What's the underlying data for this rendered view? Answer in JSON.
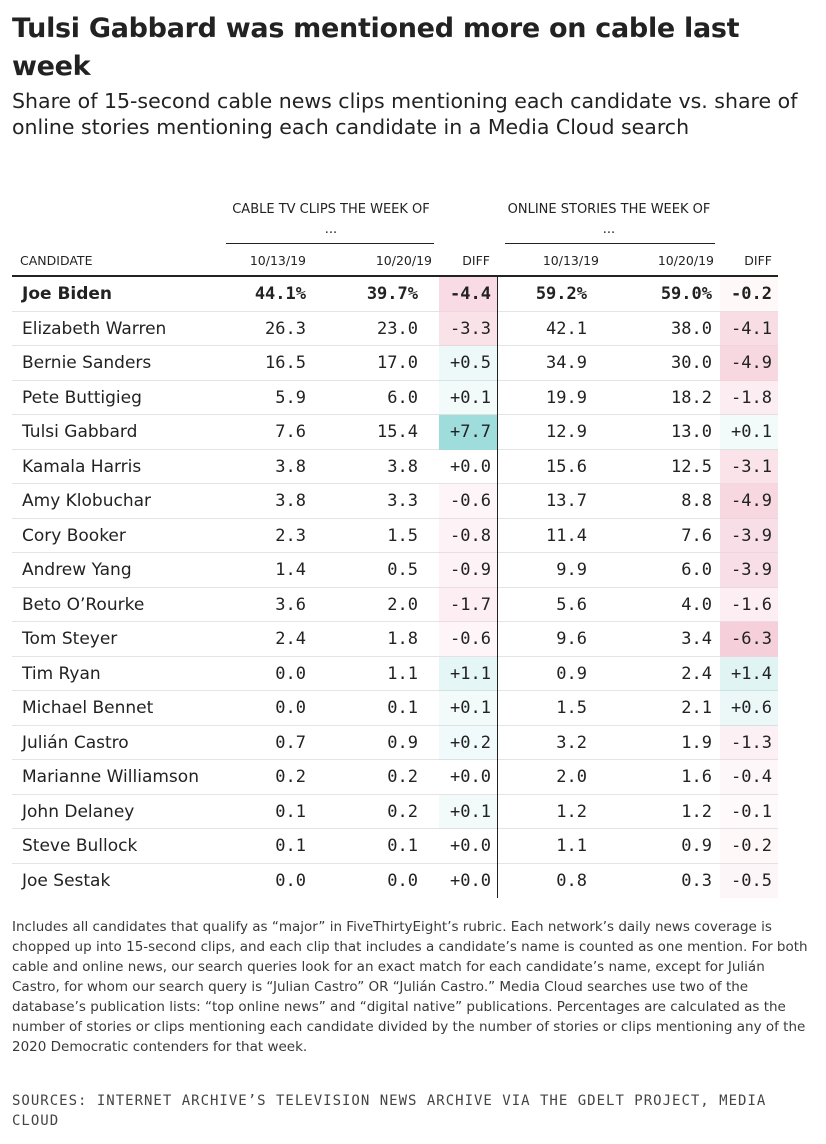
{
  "title": "Tulsi Gabbard was mentioned more on cable last week",
  "subtitle": "Share of 15-second cable news clips mentioning each candidate vs. share of online stories mentioning each candidate in a Media Cloud search",
  "colors": {
    "negative": "#f5cdd9",
    "positive": "#9fdcdc",
    "text": "#222222"
  },
  "chart_data": {
    "type": "table",
    "group_headers": {
      "cable": "CABLE TV CLIPS THE WEEK OF ...",
      "online": "ONLINE STORIES THE WEEK OF ..."
    },
    "columns": [
      "CANDIDATE",
      "10/13/19",
      "10/20/19",
      "DIFF",
      "10/13/19",
      "10/20/19",
      "DIFF"
    ],
    "rows": [
      {
        "candidate": "Joe Biden",
        "cable_1013": "44.1%",
        "cable_1020": "39.7%",
        "cable_diff": "-4.4",
        "online_1013": "59.2%",
        "online_1020": "59.0%",
        "online_diff": "-0.2",
        "bold": true
      },
      {
        "candidate": "Elizabeth Warren",
        "cable_1013": "26.3",
        "cable_1020": "23.0",
        "cable_diff": "-3.3",
        "online_1013": "42.1",
        "online_1020": "38.0",
        "online_diff": "-4.1"
      },
      {
        "candidate": "Bernie Sanders",
        "cable_1013": "16.5",
        "cable_1020": "17.0",
        "cable_diff": "+0.5",
        "online_1013": "34.9",
        "online_1020": "30.0",
        "online_diff": "-4.9"
      },
      {
        "candidate": "Pete Buttigieg",
        "cable_1013": "5.9",
        "cable_1020": "6.0",
        "cable_diff": "+0.1",
        "online_1013": "19.9",
        "online_1020": "18.2",
        "online_diff": "-1.8"
      },
      {
        "candidate": "Tulsi Gabbard",
        "cable_1013": "7.6",
        "cable_1020": "15.4",
        "cable_diff": "+7.7",
        "online_1013": "12.9",
        "online_1020": "13.0",
        "online_diff": "+0.1"
      },
      {
        "candidate": "Kamala Harris",
        "cable_1013": "3.8",
        "cable_1020": "3.8",
        "cable_diff": "+0.0",
        "online_1013": "15.6",
        "online_1020": "12.5",
        "online_diff": "-3.1"
      },
      {
        "candidate": "Amy Klobuchar",
        "cable_1013": "3.8",
        "cable_1020": "3.3",
        "cable_diff": "-0.6",
        "online_1013": "13.7",
        "online_1020": "8.8",
        "online_diff": "-4.9"
      },
      {
        "candidate": "Cory Booker",
        "cable_1013": "2.3",
        "cable_1020": "1.5",
        "cable_diff": "-0.8",
        "online_1013": "11.4",
        "online_1020": "7.6",
        "online_diff": "-3.9"
      },
      {
        "candidate": "Andrew Yang",
        "cable_1013": "1.4",
        "cable_1020": "0.5",
        "cable_diff": "-0.9",
        "online_1013": "9.9",
        "online_1020": "6.0",
        "online_diff": "-3.9"
      },
      {
        "candidate": "Beto O’Rourke",
        "cable_1013": "3.6",
        "cable_1020": "2.0",
        "cable_diff": "-1.7",
        "online_1013": "5.6",
        "online_1020": "4.0",
        "online_diff": "-1.6"
      },
      {
        "candidate": "Tom Steyer",
        "cable_1013": "2.4",
        "cable_1020": "1.8",
        "cable_diff": "-0.6",
        "online_1013": "9.6",
        "online_1020": "3.4",
        "online_diff": "-6.3"
      },
      {
        "candidate": "Tim Ryan",
        "cable_1013": "0.0",
        "cable_1020": "1.1",
        "cable_diff": "+1.1",
        "online_1013": "0.9",
        "online_1020": "2.4",
        "online_diff": "+1.4"
      },
      {
        "candidate": "Michael Bennet",
        "cable_1013": "0.0",
        "cable_1020": "0.1",
        "cable_diff": "+0.1",
        "online_1013": "1.5",
        "online_1020": "2.1",
        "online_diff": "+0.6"
      },
      {
        "candidate": "Julián Castro",
        "cable_1013": "0.7",
        "cable_1020": "0.9",
        "cable_diff": "+0.2",
        "online_1013": "3.2",
        "online_1020": "1.9",
        "online_diff": "-1.3"
      },
      {
        "candidate": "Marianne Williamson",
        "cable_1013": "0.2",
        "cable_1020": "0.2",
        "cable_diff": "+0.0",
        "online_1013": "2.0",
        "online_1020": "1.6",
        "online_diff": "-0.4"
      },
      {
        "candidate": "John Delaney",
        "cable_1013": "0.1",
        "cable_1020": "0.2",
        "cable_diff": "+0.1",
        "online_1013": "1.2",
        "online_1020": "1.2",
        "online_diff": "-0.1"
      },
      {
        "candidate": "Steve Bullock",
        "cable_1013": "0.1",
        "cable_1020": "0.1",
        "cable_diff": "+0.0",
        "online_1013": "1.1",
        "online_1020": "0.9",
        "online_diff": "-0.2"
      },
      {
        "candidate": "Joe Sestak",
        "cable_1013": "0.0",
        "cable_1020": "0.0",
        "cable_diff": "+0.0",
        "online_1013": "0.8",
        "online_1020": "0.3",
        "online_diff": "-0.5"
      }
    ]
  },
  "notes": "Includes all candidates that qualify as “major” in FiveThirtyEight’s rubric. Each network’s daily news coverage is chopped up into 15-second clips, and each clip that includes a candidate’s name is counted as one mention. For both cable and online news, our search queries look for an exact match for each candidate’s name, except for Julián Castro, for whom our search query is “Julian Castro” OR “Julián Castro.” Media Cloud searches use two of the database’s publication lists: “top online news” and “digital native” publications. Percentages are calculated as the number of stories or clips mentioning each candidate divided by the number of stories or clips mentioning any of the 2020 Democratic contenders for that week.",
  "sources": "SOURCES: INTERNET ARCHIVE’S TELEVISION NEWS ARCHIVE VIA THE GDELT PROJECT, MEDIA CLOUD"
}
